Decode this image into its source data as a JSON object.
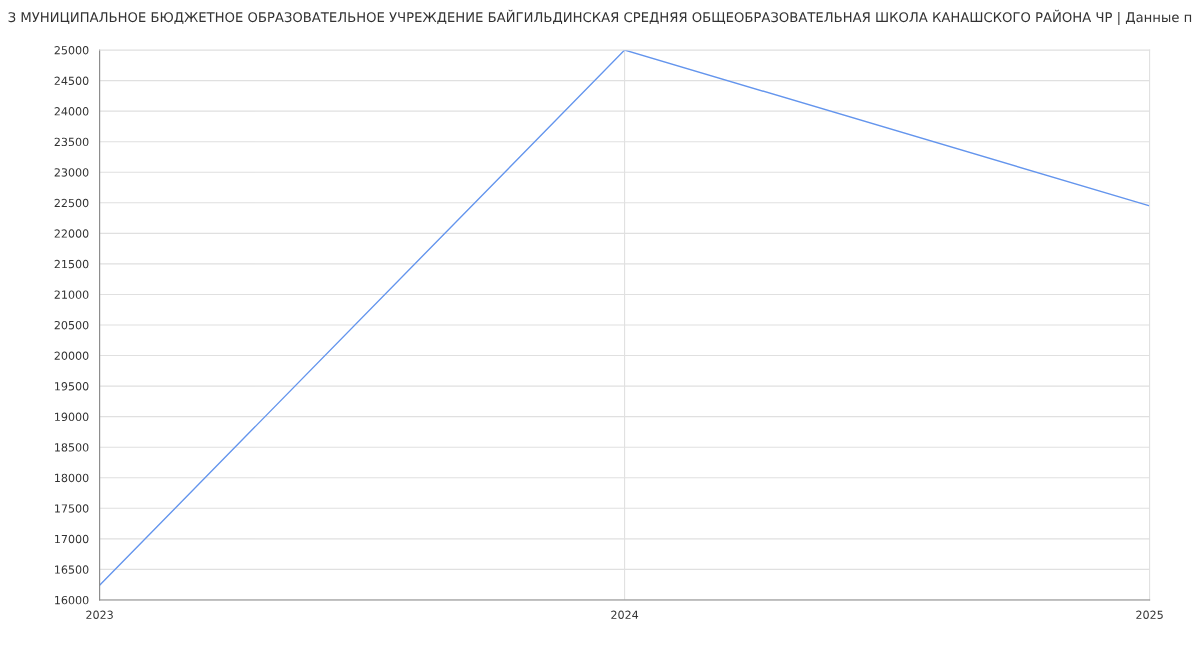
{
  "chart_data": {
    "type": "line",
    "title": "З МУНИЦИПАЛЬНОЕ БЮДЖЕТНОЕ ОБРАЗОВАТЕЛЬНОЕ УЧРЕЖДЕНИЕ БАЙГИЛЬДИНСКАЯ СРЕДНЯЯ ОБЩЕОБРАЗОВАТЕЛЬНАЯ ШКОЛА КАНАШСКОГО РАЙОНА ЧР | Данные п",
    "x": [
      2023,
      2024,
      2025
    ],
    "series": [
      {
        "color": "#6495ed",
        "values": [
          16240,
          25000,
          22450
        ]
      }
    ],
    "xlim": [
      2023,
      2025
    ],
    "xticks": [
      2023,
      2024,
      2025
    ],
    "ylim": [
      16000,
      25000
    ],
    "yticks": [
      16000,
      16500,
      17000,
      17500,
      18000,
      18500,
      19000,
      19500,
      20000,
      20500,
      21000,
      21500,
      22000,
      22500,
      23000,
      23500,
      24000,
      24500,
      25000
    ],
    "grid": true,
    "marker": "none",
    "line_style": "solid"
  }
}
